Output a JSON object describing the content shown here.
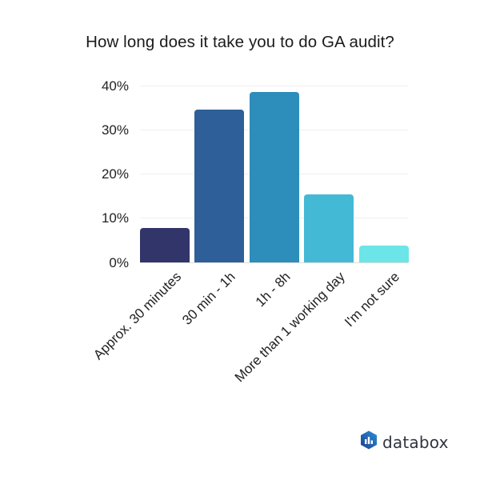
{
  "chart_data": {
    "type": "bar",
    "title": "How long does it take you to do GA audit?",
    "xlabel": "",
    "ylabel": "",
    "categories": [
      "Approx. 30 minutes",
      "30 min - 1h",
      "1h - 8h",
      "More than 1 working day",
      "I'm not sure"
    ],
    "values": [
      7.7,
      34.6,
      38.5,
      15.4,
      3.8
    ],
    "colors": [
      "#313569",
      "#2E5F99",
      "#2D8DBB",
      "#43B9D6",
      "#6CE5E8"
    ],
    "ylim": [
      0,
      40
    ],
    "yticks": [
      "0%",
      "10%",
      "20%",
      "30%",
      "40%"
    ],
    "grid": true,
    "legend": "none",
    "value_unit": "%"
  },
  "header": {
    "title": "How long does it take you to do GA audit?"
  },
  "branding": {
    "logo_icon": "databox-hexagon-bars-icon",
    "logo_text": "databox",
    "logo_gradient": [
      "#1E3F8F",
      "#2C8FD6"
    ]
  }
}
